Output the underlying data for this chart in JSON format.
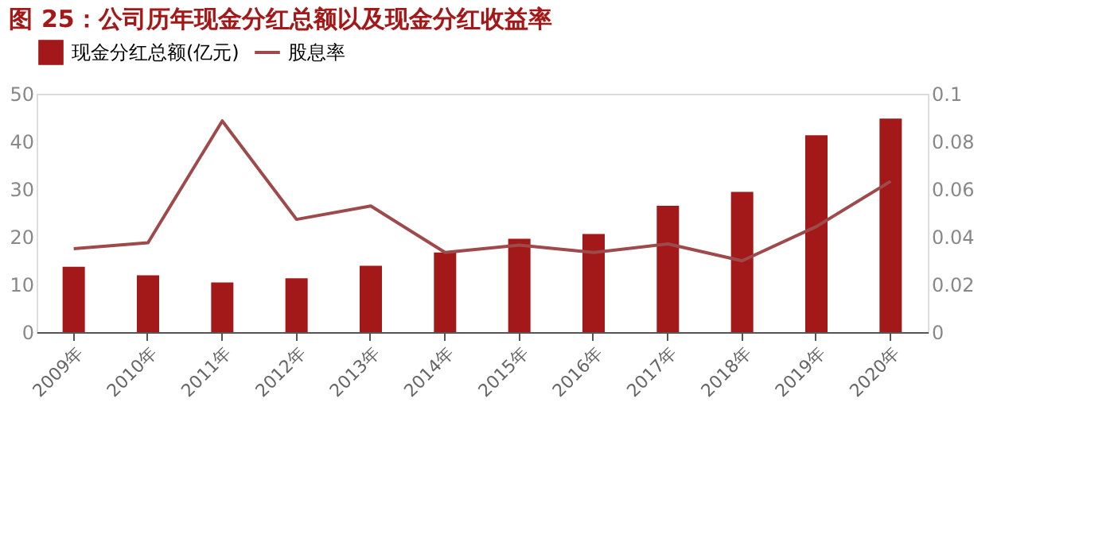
{
  "chart_data": {
    "type": "bar",
    "title": "图 25：公司历年现金分红总额以及现金分红收益率",
    "categories": [
      "2009年",
      "2010年",
      "2011年",
      "2012年",
      "2013年",
      "2014年",
      "2015年",
      "2016年",
      "2017年",
      "2018年",
      "2019年",
      "2020年"
    ],
    "series": [
      {
        "name": "现金分红总额(亿元)",
        "color": "#a31818",
        "values": [
          13.7,
          11.9,
          10.4,
          11.3,
          13.9,
          16.7,
          19.6,
          20.6,
          26.5,
          29.4,
          41.3,
          44.8
        ]
      },
      {
        "name": "股息率",
        "type": "line",
        "axis": "y2",
        "color": "#9e4a4a",
        "values": [
          0.035,
          0.0375,
          0.0886,
          0.0473,
          0.0529,
          0.0334,
          0.0365,
          0.0334,
          0.037,
          0.0299,
          0.0443,
          0.0633
        ]
      }
    ],
    "ylim": [
      0,
      50
    ],
    "yticks": [
      0,
      10,
      20,
      30,
      40,
      50
    ],
    "y2lim": [
      0,
      0.1
    ],
    "y2ticks": [
      0,
      0.02,
      0.04,
      0.06,
      0.08,
      {
        "value": 0.1,
        "label": "0.1"
      }
    ],
    "legend": "top",
    "grid": false,
    "marker": "none",
    "line_style": "solid"
  }
}
